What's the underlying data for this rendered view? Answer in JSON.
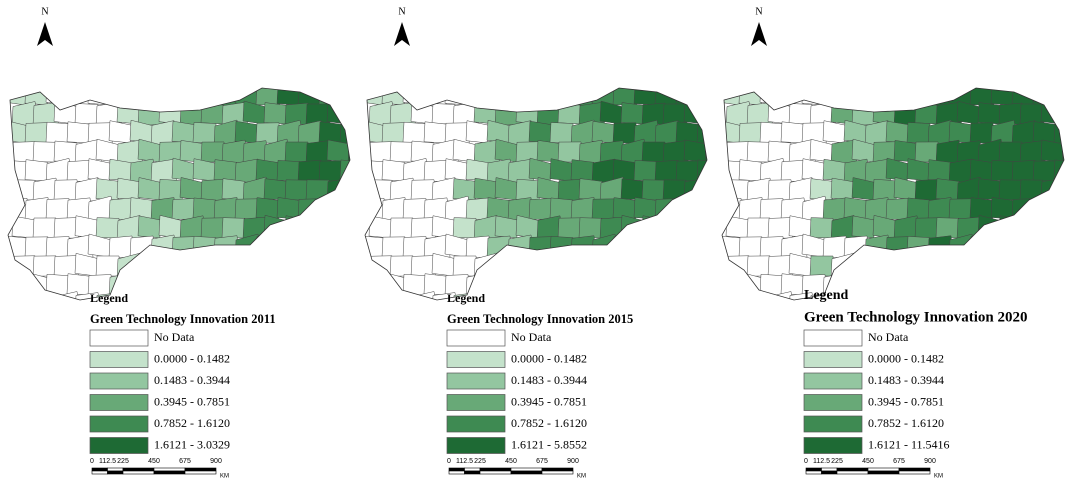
{
  "panels": [
    {
      "north": "N",
      "legend_heading": "Legend",
      "title": "Green Technology Innovation 2011",
      "classes": [
        {
          "label": "No Data",
          "color": "#ffffff"
        },
        {
          "label": "0.0000 - 0.1482",
          "color": "#c4e2cb"
        },
        {
          "label": "0.1483 - 0.3944",
          "color": "#93c6a0"
        },
        {
          "label": "0.3945 - 0.7851",
          "color": "#68a977"
        },
        {
          "label": "0.7852 - 1.6120",
          "color": "#3e8a52"
        },
        {
          "label": "1.6121 - 3.0329",
          "color": "#1e6a34"
        }
      ],
      "scale": {
        "ticks": [
          0,
          112.5,
          225,
          450,
          675,
          900
        ],
        "unit": "KM"
      }
    },
    {
      "north": "N",
      "legend_heading": "Legend",
      "title": "Green Technology Innovation 2015",
      "classes": [
        {
          "label": "No Data",
          "color": "#ffffff"
        },
        {
          "label": "0.0000 - 0.1482",
          "color": "#c4e2cb"
        },
        {
          "label": "0.1483 - 0.3944",
          "color": "#93c6a0"
        },
        {
          "label": "0.3945 - 0.7851",
          "color": "#68a977"
        },
        {
          "label": "0.7852 - 1.6120",
          "color": "#3e8a52"
        },
        {
          "label": "1.6121 - 5.8552",
          "color": "#1e6a34"
        }
      ],
      "scale": {
        "ticks": [
          0,
          112.5,
          225,
          450,
          675,
          900
        ],
        "unit": "KM"
      }
    },
    {
      "north": "N",
      "legend_heading": "Legend",
      "title": "Green Technology Innovation 2020",
      "classes": [
        {
          "label": "No Data",
          "color": "#ffffff"
        },
        {
          "label": "0.0000 - 0.1482",
          "color": "#c4e2cb"
        },
        {
          "label": "0.1483 - 0.3944",
          "color": "#93c6a0"
        },
        {
          "label": "0.3945 - 0.7851",
          "color": "#68a977"
        },
        {
          "label": "0.7852 - 1.6120",
          "color": "#3e8a52"
        },
        {
          "label": "1.6121 - 11.5416",
          "color": "#1e6a34"
        }
      ],
      "scale": {
        "ticks": [
          0,
          112.5,
          225,
          450,
          675,
          900
        ],
        "unit": "KM"
      }
    }
  ]
}
